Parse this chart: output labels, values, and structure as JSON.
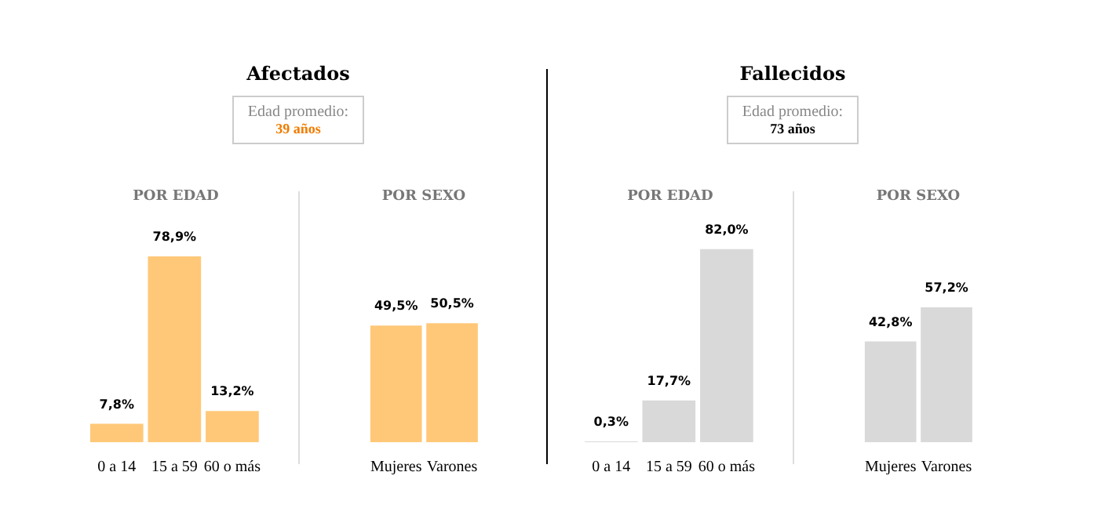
{
  "chart_data": [
    {
      "type": "other",
      "title": "Afectados",
      "annotations": [
        "Edad promedio:",
        "39 años"
      ]
    },
    {
      "type": "other",
      "title": "Fallecidos",
      "annotations": [
        "Edad promedio:",
        "73 años"
      ]
    },
    {
      "type": "bar",
      "title": "POR EDAD",
      "categories": [
        "0 a 14",
        "15 a 59",
        "60 o más"
      ],
      "values": [
        7.8,
        78.9,
        13.2
      ],
      "value_labels": [
        "7,8%",
        "78,9%",
        "13,2%"
      ],
      "color": "#ffc878",
      "tick_labels": "x"
    },
    {
      "type": "bar",
      "title": "POR SEXO",
      "categories": [
        "Mujeres",
        "Varones"
      ],
      "values": [
        49.5,
        50.5
      ],
      "value_labels": [
        "49,5%",
        "50,5%"
      ],
      "color": "#ffc878",
      "tick_labels": "x"
    },
    {
      "type": "bar",
      "title": "POR EDAD",
      "categories": [
        "0 a 14",
        "15 a 59",
        "60 o más"
      ],
      "values": [
        0.3,
        17.7,
        82.0
      ],
      "value_labels": [
        "0,3%",
        "17,7%",
        "82,0%"
      ],
      "color": "#d9d9d9",
      "tick_labels": "x"
    },
    {
      "type": "bar",
      "title": "POR SEXO",
      "categories": [
        "Mujeres",
        "Varones"
      ],
      "values": [
        42.8,
        57.2
      ],
      "value_labels": [
        "42,8%",
        "57,2%"
      ],
      "color": "#d9d9d9",
      "tick_labels": "x"
    }
  ]
}
